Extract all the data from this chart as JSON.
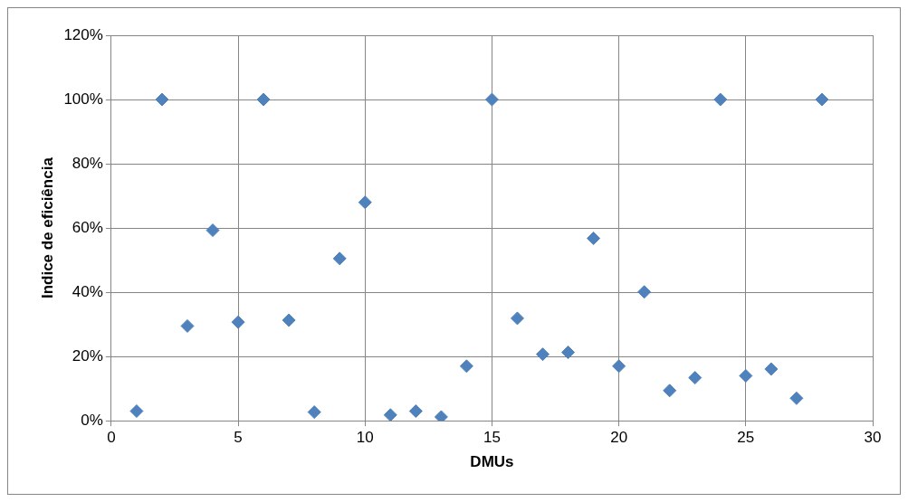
{
  "chart_data": {
    "type": "scatter",
    "xlabel": "DMUs",
    "ylabel": "Indice de eficiência",
    "marker": "diamond",
    "grid": true,
    "legend": false,
    "x": [
      1,
      2,
      3,
      4,
      5,
      6,
      7,
      8,
      9,
      10,
      11,
      12,
      13,
      14,
      15,
      16,
      17,
      18,
      19,
      20,
      21,
      22,
      23,
      24,
      25,
      26,
      27,
      28
    ],
    "series": [
      {
        "color": "#4f81bd",
        "values": [
          3,
          100,
          29.5,
          59.3,
          30.7,
          100,
          31.3,
          2.7,
          50.5,
          68,
          1.8,
          3,
          1.2,
          17,
          100,
          31.9,
          20.7,
          21.3,
          56.8,
          17,
          40.1,
          9.4,
          13.4,
          100,
          14,
          16.1,
          7,
          100
        ]
      }
    ],
    "xlim": [
      0,
      30
    ],
    "xticks": [
      0,
      5,
      10,
      15,
      20,
      25,
      30
    ],
    "ylim": [
      0,
      120
    ],
    "yticks": [
      {
        "value": 0,
        "label": "0%"
      },
      {
        "value": 20,
        "label": "20%"
      },
      {
        "value": 40,
        "label": "40%"
      },
      {
        "value": 60,
        "label": "60%"
      },
      {
        "value": 80,
        "label": "80%"
      },
      {
        "value": 100,
        "label": "100%"
      },
      {
        "value": 120,
        "label": "120%"
      }
    ]
  }
}
